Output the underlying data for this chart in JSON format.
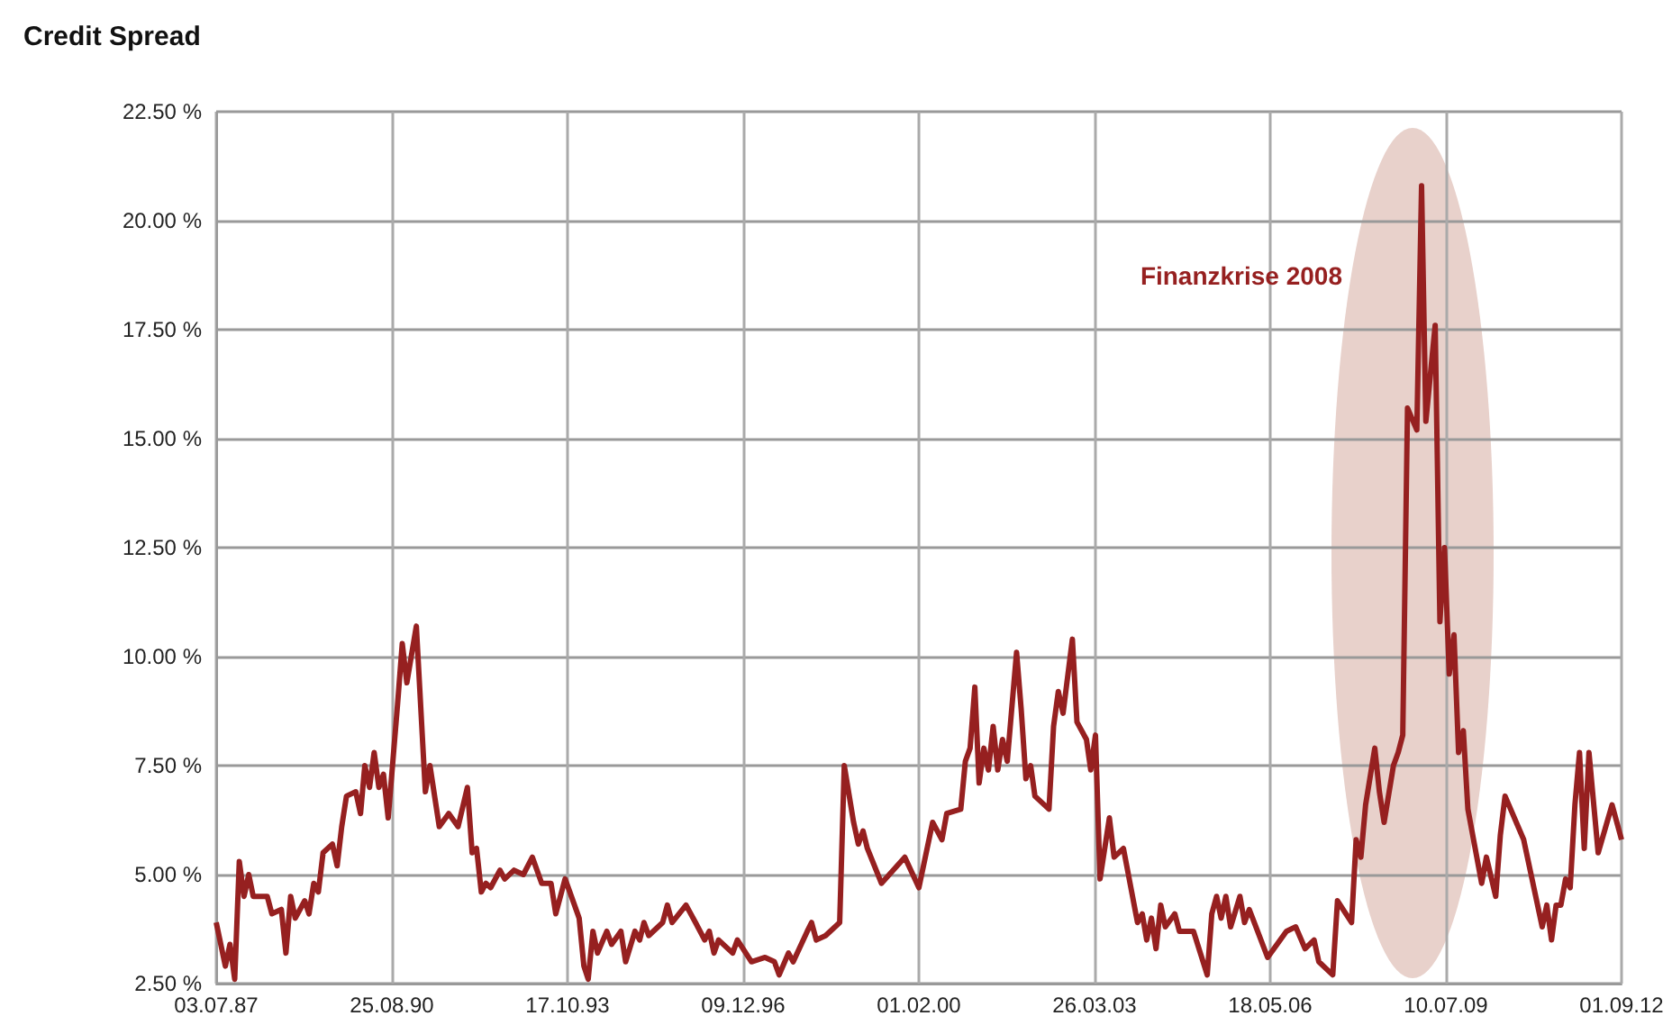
{
  "chart_data": {
    "type": "line",
    "title": "Credit Spread",
    "x": [
      "1987-07-03",
      "1987-09",
      "1987-10",
      "1987-11",
      "1987-12",
      "1988-01",
      "1988-02",
      "1988-03",
      "1988-06",
      "1988-07",
      "1988-09",
      "1988-10",
      "1988-11",
      "1988-12",
      "1989-02",
      "1989-03",
      "1989-04",
      "1989-05",
      "1989-06",
      "1989-08",
      "1989-09",
      "1989-10",
      "1989-11",
      "1990-01",
      "1990-02",
      "1990-03",
      "1990-04",
      "1990-05",
      "1990-06",
      "1990-07",
      "1990-08",
      "1990-10",
      "1990-11",
      "1990-12",
      "1991-02",
      "1991-04",
      "1991-05",
      "1991-07",
      "1991-09",
      "1991-11",
      "1992-01",
      "1992-02",
      "1992-03",
      "1992-04",
      "1992-05",
      "1992-06",
      "1992-08",
      "1992-09",
      "1992-11",
      "1993-01",
      "1993-03",
      "1993-05",
      "1993-07",
      "1993-08",
      "1993-10",
      "1993-11",
      "1994-01",
      "1994-02",
      "1994-03",
      "1994-04",
      "1994-05",
      "1994-07",
      "1994-08",
      "1994-10",
      "1994-11",
      "1995-01",
      "1995-02",
      "1995-03",
      "1995-04",
      "1995-07",
      "1995-08",
      "1995-09",
      "1995-12",
      "1996-02",
      "1996-04",
      "1996-05",
      "1996-06",
      "1996-07",
      "1996-10",
      "1996-11",
      "1997-02",
      "1997-05",
      "1997-07",
      "1997-08",
      "1997-10",
      "1997-11",
      "1998-02",
      "1998-03",
      "1998-04",
      "1998-06",
      "1998-09",
      "1998-10",
      "1998-12",
      "1999-01",
      "1999-02",
      "1999-03",
      "1999-06",
      "1999-11",
      "2000-02",
      "2000-05",
      "2000-07",
      "2000-08",
      "2000-11",
      "2000-12",
      "2001-01",
      "2001-02",
      "2001-03",
      "2001-04",
      "2001-05",
      "2001-06",
      "2001-07",
      "2001-08",
      "2001-09",
      "2001-11",
      "2001-12",
      "2002-01",
      "2002-02",
      "2002-03",
      "2002-06",
      "2002-07",
      "2002-08",
      "2002-09",
      "2002-11",
      "2002-12",
      "2003-02",
      "2003-03",
      "2003-04",
      "2003-05",
      "2003-07",
      "2003-08",
      "2003-10",
      "2004-01",
      "2004-02",
      "2004-03",
      "2004-04",
      "2004-05",
      "2004-06",
      "2004-07",
      "2004-09",
      "2004-10",
      "2005-01",
      "2005-04",
      "2005-05",
      "2005-06",
      "2005-07",
      "2005-08",
      "2005-09",
      "2005-11",
      "2005-12",
      "2006-01",
      "2006-05",
      "2006-09",
      "2006-11",
      "2007-01",
      "2007-03",
      "2007-04",
      "2007-07",
      "2007-08",
      "2007-11",
      "2007-12",
      "2008-01",
      "2008-02",
      "2008-04",
      "2008-05",
      "2008-06",
      "2008-08",
      "2008-09",
      "2008-10",
      "2008-11",
      "2009-01",
      "2009-02",
      "2009-03",
      "2009-05",
      "2009-06",
      "2009-07",
      "2009-08",
      "2009-09",
      "2009-10",
      "2009-11",
      "2009-12",
      "2010-03",
      "2010-04",
      "2010-06",
      "2010-07",
      "2010-08",
      "2010-12",
      "2011-04",
      "2011-05",
      "2011-06",
      "2011-07",
      "2011-08",
      "2011-09",
      "2011-10",
      "2011-11",
      "2011-12",
      "2012-01",
      "2012-02",
      "2012-04",
      "2012-07",
      "2012-09"
    ],
    "series": [
      {
        "color": "#962020",
        "values": [
          3.9,
          2.9,
          3.4,
          2.6,
          5.3,
          4.5,
          5.0,
          4.5,
          4.5,
          4.1,
          4.2,
          3.2,
          4.5,
          4.0,
          4.4,
          4.1,
          4.8,
          4.6,
          5.5,
          5.7,
          5.2,
          6.1,
          6.8,
          6.9,
          6.4,
          7.5,
          7.0,
          7.8,
          7.0,
          7.3,
          6.3,
          8.9,
          10.3,
          9.4,
          10.7,
          6.9,
          7.5,
          6.1,
          6.4,
          6.1,
          7.0,
          5.5,
          5.6,
          4.6,
          4.8,
          4.7,
          5.1,
          4.9,
          5.1,
          5.0,
          5.4,
          4.8,
          4.8,
          4.1,
          4.9,
          4.6,
          4.0,
          2.9,
          2.6,
          3.7,
          3.2,
          3.7,
          3.4,
          3.7,
          3.0,
          3.7,
          3.5,
          3.9,
          3.6,
          3.9,
          4.3,
          3.9,
          4.3,
          3.9,
          3.5,
          3.7,
          3.2,
          3.5,
          3.2,
          3.5,
          3.0,
          3.1,
          3.0,
          2.7,
          3.2,
          3.0,
          3.7,
          3.9,
          3.5,
          3.6,
          3.9,
          7.5,
          6.2,
          5.7,
          6.0,
          5.6,
          4.8,
          5.4,
          4.7,
          6.2,
          5.8,
          6.4,
          6.5,
          7.6,
          7.9,
          9.3,
          7.1,
          7.9,
          7.4,
          8.4,
          7.4,
          8.1,
          7.6,
          10.1,
          8.8,
          7.2,
          7.5,
          6.8,
          6.5,
          8.4,
          9.2,
          8.7,
          10.4,
          8.5,
          8.1,
          7.4,
          8.2,
          4.9,
          6.3,
          5.4,
          5.6,
          3.9,
          4.1,
          3.5,
          4.0,
          3.3,
          4.3,
          3.8,
          4.1,
          3.7,
          3.7,
          2.7,
          4.1,
          4.5,
          4.0,
          4.5,
          3.8,
          4.5,
          3.9,
          4.2,
          3.1,
          3.7,
          3.8,
          3.3,
          3.5,
          3.0,
          2.7,
          4.4,
          3.9,
          5.8,
          5.4,
          6.6,
          7.9,
          6.9,
          6.2,
          7.5,
          7.8,
          8.2,
          15.7,
          15.2,
          20.8,
          15.4,
          17.6,
          10.8,
          12.5,
          9.6,
          10.5,
          7.8,
          8.3,
          6.5,
          4.8,
          5.4,
          4.5,
          5.9,
          6.8,
          5.8,
          3.8,
          4.3,
          3.5,
          4.3,
          4.3,
          4.9,
          4.7,
          6.6,
          7.8,
          5.6,
          7.8,
          5.5,
          6.6,
          5.8
        ]
      }
    ],
    "xlim": [
      "1987-07-03",
      "2012-09-01"
    ],
    "xticks": [
      {
        "value": "1987-07-03",
        "label": "03.07.87"
      },
      {
        "value": "1990-08-25",
        "label": "25.08.90"
      },
      {
        "value": "1993-10-17",
        "label": "17.10.93"
      },
      {
        "value": "1996-12-09",
        "label": "09.12.96"
      },
      {
        "value": "2000-02-01",
        "label": "01.02.00"
      },
      {
        "value": "2003-03-26",
        "label": "26.03.03"
      },
      {
        "value": "2006-05-18",
        "label": "18.05.06"
      },
      {
        "value": "2009-07-10",
        "label": "10.07.09"
      },
      {
        "value": "2012-09-01",
        "label": "01.09.12"
      }
    ],
    "ylim": [
      2.5,
      22.5
    ],
    "yticks": [
      {
        "value": 2.5,
        "label": "2.50 %"
      },
      {
        "value": 5,
        "label": "5.00 %"
      },
      {
        "value": 7.5,
        "label": "7.50 %"
      },
      {
        "value": 10,
        "label": "10.00 %"
      },
      {
        "value": 12.5,
        "label": "12.50 %"
      },
      {
        "value": 15,
        "label": "15.00 %"
      },
      {
        "value": 17.5,
        "label": "17.50 %"
      },
      {
        "value": 20,
        "label": "20.00 %"
      },
      {
        "value": 22.5,
        "label": "22.50 %"
      }
    ],
    "annotations": [
      "Finanzkrise 2008"
    ],
    "grid": true,
    "marker": "none",
    "line_style": "solid"
  }
}
